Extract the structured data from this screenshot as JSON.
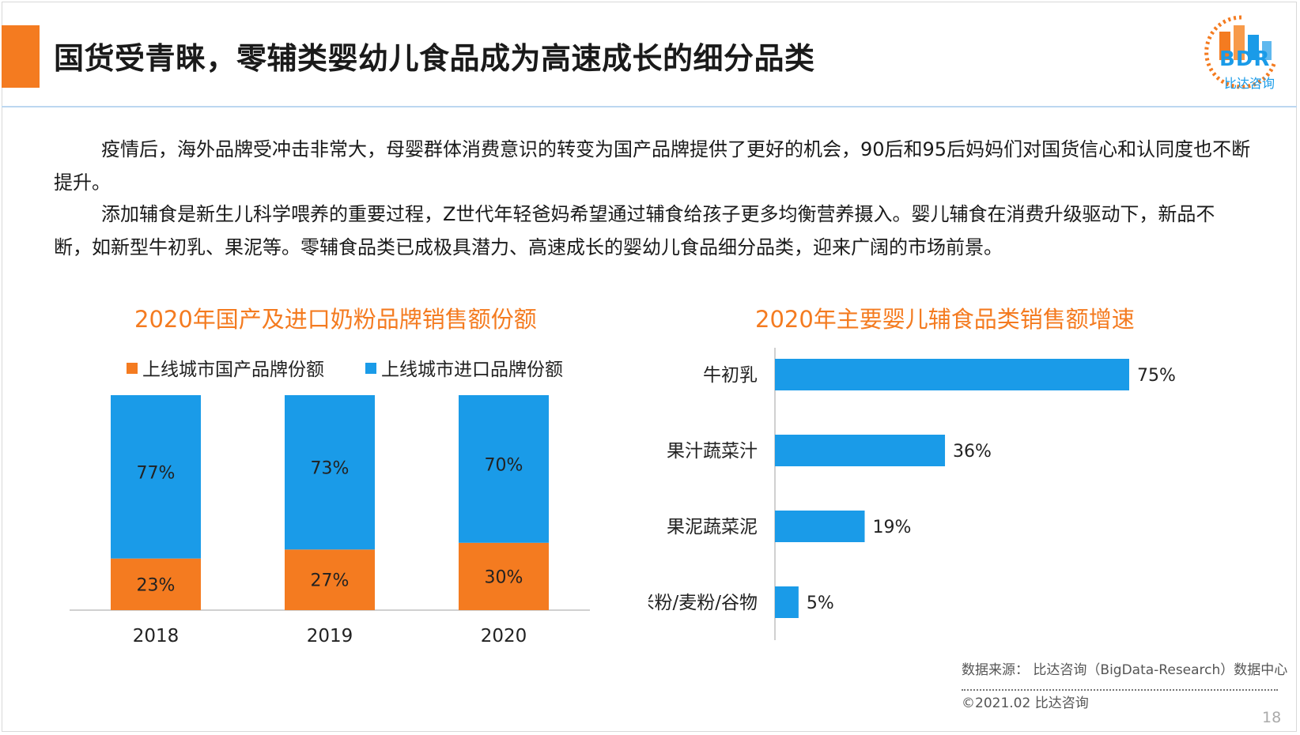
{
  "header": {
    "title": "国货受青睐，零辅类婴幼儿食品成为高速成长的细分品类",
    "accent_color": "#f47b20"
  },
  "logo": {
    "mark": "BDR",
    "subtitle": "比达咨询",
    "icon": "bdr-logo-icon"
  },
  "body": {
    "paragraph1": "疫情后，海外品牌受冲击非常大，母婴群体消费意识的转变为国产品牌提供了更好的机会，90后和95后妈妈们对国货信心和认同度也不断提升。",
    "paragraph2": "添加辅食是新生儿科学喂养的重要过程，Z世代年轻爸妈希望通过辅食给孩子更多均衡营养摄入。婴儿辅食在消费升级驱动下，新品不断，如新型牛初乳、果泥等。零辅食品类已成极具潜力、高速成长的婴幼儿食品细分品类，迎来广阔的市场前景。"
  },
  "chart_data": [
    {
      "type": "bar",
      "stacked": true,
      "title": "2020年国产及进口奶粉品牌销售额份额",
      "categories": [
        "2018",
        "2019",
        "2020"
      ],
      "series": [
        {
          "name": "上线城市国产品牌份额",
          "values": [
            23,
            27,
            30
          ],
          "labels": [
            "23%",
            "27%",
            "30%"
          ],
          "color": "#f47b20"
        },
        {
          "name": "上线城市进口品牌份额",
          "values": [
            77,
            73,
            70
          ],
          "labels": [
            "77%",
            "73%",
            "70%"
          ],
          "color": "#1a9be8"
        }
      ],
      "ylim": [
        0,
        100
      ],
      "legend": "top",
      "grid": false
    },
    {
      "type": "bar",
      "orientation": "horizontal",
      "title": "2020年主要婴儿辅食品类销售额增速",
      "categories": [
        "牛初乳",
        "果汁蔬菜汁",
        "果泥蔬菜泥",
        "米粉/麦粉/谷物"
      ],
      "values": [
        75,
        36,
        19,
        5
      ],
      "labels": [
        "75%",
        "36%",
        "19%",
        "5%"
      ],
      "color": "#1a9be8",
      "xlim": [
        0,
        75
      ],
      "grid": false
    }
  ],
  "footer": {
    "source": "数据来源： 比达咨询（BigData-Research）数据中心",
    "copyright": "©2021.02  比达咨询",
    "page_number": "18"
  }
}
